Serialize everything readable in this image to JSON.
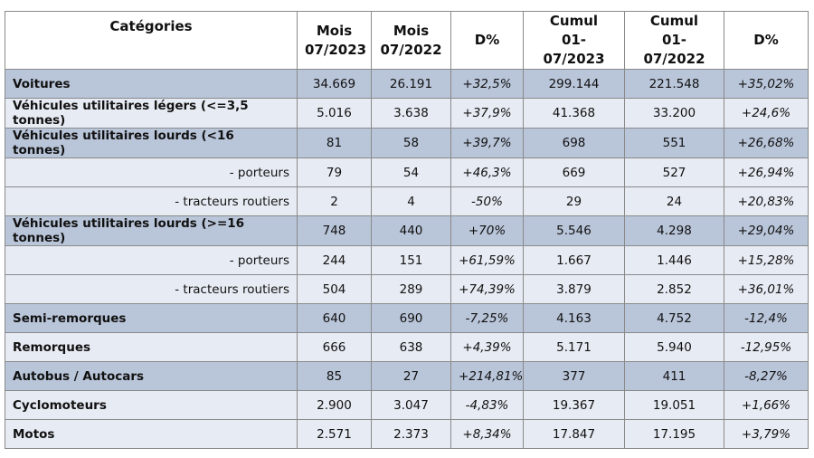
{
  "header": [
    [
      "Catégories"
    ],
    [
      "Mois",
      "07/2023"
    ],
    [
      "Mois",
      "07/2022"
    ],
    [
      "D%"
    ],
    [
      "Cumul",
      "01-07/2023"
    ],
    [
      "Cumul",
      "01-07/2022"
    ],
    [
      "D%"
    ]
  ],
  "rows": [
    {
      "label": "Voitures",
      "level": "main",
      "shaded": true,
      "cells": [
        "34.669",
        "26.191",
        "+32,5%",
        "299.144",
        "221.548",
        "+35,02%"
      ]
    },
    {
      "label": "Véhicules utilitaires légers (<=3,5 tonnes)",
      "level": "main",
      "shaded": false,
      "cells": [
        "5.016",
        "3.638",
        "+37,9%",
        "41.368",
        "33.200",
        "+24,6%"
      ]
    },
    {
      "label": "Véhicules utilitaires lourds (<16 tonnes)",
      "level": "main",
      "shaded": true,
      "cells": [
        "81",
        "58",
        "+39,7%",
        "698",
        "551",
        "+26,68%"
      ]
    },
    {
      "label": "- porteurs",
      "level": "sub",
      "shaded": false,
      "cells": [
        "79",
        "54",
        "+46,3%",
        "669",
        "527",
        "+26,94%"
      ]
    },
    {
      "label": "- tracteurs routiers",
      "level": "sub",
      "shaded": false,
      "cells": [
        "2",
        "4",
        "-50%",
        "29",
        "24",
        "+20,83%"
      ]
    },
    {
      "label": "Véhicules utilitaires lourds (>=16 tonnes)",
      "level": "main",
      "shaded": true,
      "cells": [
        "748",
        "440",
        "+70%",
        "5.546",
        "4.298",
        "+29,04%"
      ]
    },
    {
      "label": "- porteurs",
      "level": "sub",
      "shaded": false,
      "cells": [
        "244",
        "151",
        "+61,59%",
        "1.667",
        "1.446",
        "+15,28%"
      ]
    },
    {
      "label": "- tracteurs routiers",
      "level": "sub",
      "shaded": false,
      "cells": [
        "504",
        "289",
        "+74,39%",
        "3.879",
        "2.852",
        "+36,01%"
      ]
    },
    {
      "label": "Semi-remorques",
      "level": "main",
      "shaded": true,
      "cells": [
        "640",
        "690",
        "-7,25%",
        "4.163",
        "4.752",
        "-12,4%"
      ]
    },
    {
      "label": "Remorques",
      "level": "main",
      "shaded": false,
      "cells": [
        "666",
        "638",
        "+4,39%",
        "5.171",
        "5.940",
        "-12,95%"
      ]
    },
    {
      "label": "Autobus / Autocars",
      "level": "main",
      "shaded": true,
      "cells": [
        "85",
        "27",
        "+214,81%",
        "377",
        "411",
        "-8,27%"
      ]
    },
    {
      "label": "Cyclomoteurs",
      "level": "main",
      "shaded": false,
      "cells": [
        "2.900",
        "3.047",
        "-4,83%",
        "19.367",
        "19.051",
        "+1,66%"
      ]
    },
    {
      "label": "Motos",
      "level": "main",
      "shaded": false,
      "cells": [
        "2.571",
        "2.373",
        "+8,34%",
        "17.847",
        "17.195",
        "+3,79%"
      ]
    }
  ]
}
